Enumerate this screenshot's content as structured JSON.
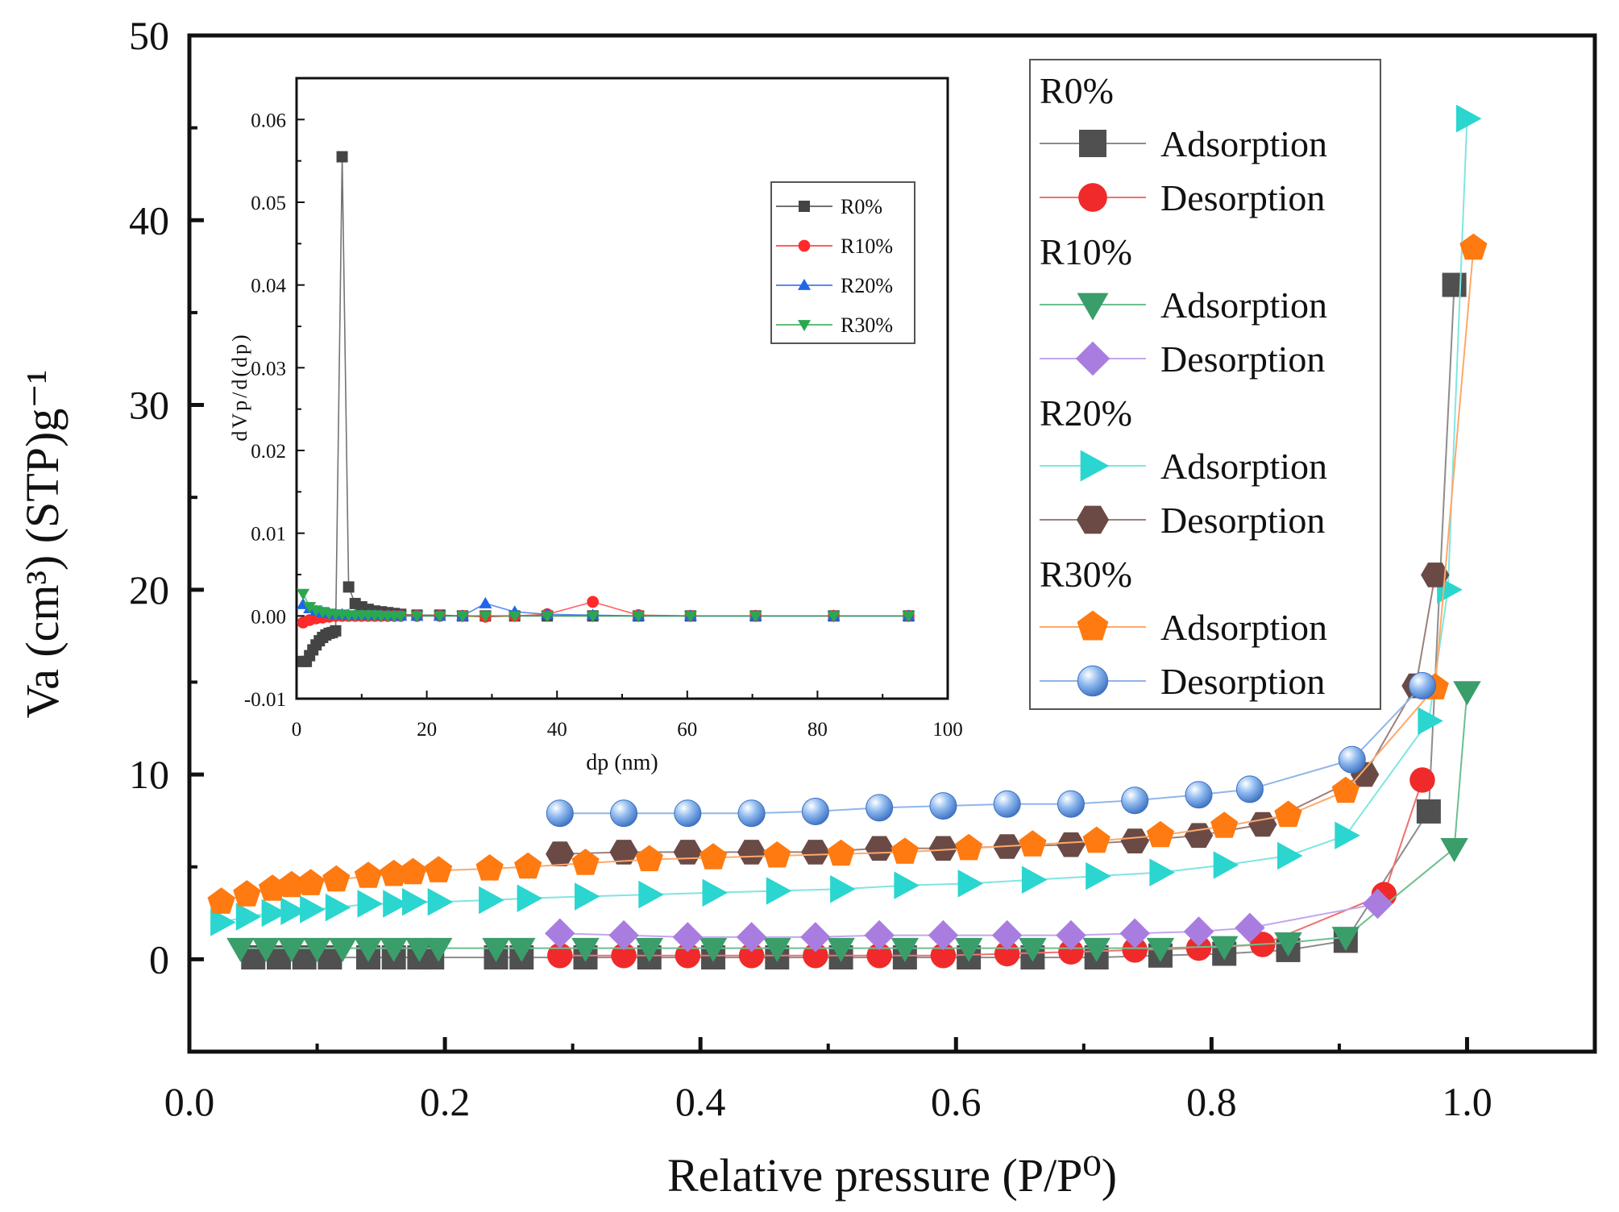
{
  "chart_data": [
    {
      "type": "scatter",
      "xlabel": "Relative pressure (P/P⁰)",
      "ylabel": "Va (cm³) (STP)g⁻¹",
      "xlim": [
        0.0,
        1.1
      ],
      "ylim": [
        -5,
        50
      ],
      "x_ticks": [
        "0.0",
        "0.2",
        "0.4",
        "0.6",
        "0.8",
        "1.0"
      ],
      "y_ticks": [
        "0",
        "10",
        "20",
        "30",
        "40",
        "50"
      ],
      "grid": false,
      "legend_position": "top-right",
      "legend_groups": [
        "R0%",
        "R10%",
        "R20%",
        "R30%"
      ],
      "series": [
        {
          "name": "Adsorption",
          "group": "R0%",
          "color": "#505050",
          "line_color": "#8c8c8c",
          "marker": "square",
          "x": [
            0.05,
            0.07,
            0.09,
            0.11,
            0.14,
            0.16,
            0.18,
            0.19,
            0.24,
            0.26,
            0.31,
            0.36,
            0.41,
            0.46,
            0.51,
            0.56,
            0.61,
            0.66,
            0.71,
            0.76,
            0.81,
            0.86,
            0.905,
            0.97,
            0.99
          ],
          "y": [
            0.1,
            0.1,
            0.1,
            0.1,
            0.1,
            0.1,
            0.1,
            0.1,
            0.1,
            0.1,
            0.1,
            0.1,
            0.1,
            0.1,
            0.1,
            0.1,
            0.1,
            0.1,
            0.1,
            0.2,
            0.3,
            0.5,
            1.0,
            8.0,
            36.5
          ]
        },
        {
          "name": "Desorption",
          "group": "R0%",
          "color": "#f02a2a",
          "line_color": "#f07070",
          "marker": "circle",
          "x": [
            0.29,
            0.34,
            0.39,
            0.44,
            0.49,
            0.54,
            0.59,
            0.64,
            0.69,
            0.74,
            0.79,
            0.84,
            0.935,
            0.965
          ],
          "y": [
            0.2,
            0.2,
            0.2,
            0.2,
            0.2,
            0.2,
            0.2,
            0.3,
            0.4,
            0.5,
            0.6,
            0.8,
            3.5,
            9.7
          ]
        },
        {
          "name": "Adsorption",
          "group": "R10%",
          "color": "#3a9e6a",
          "line_color": "#6cbf8f",
          "marker": "triangle-down",
          "x": [
            0.04,
            0.06,
            0.08,
            0.1,
            0.12,
            0.14,
            0.16,
            0.18,
            0.195,
            0.24,
            0.26,
            0.31,
            0.36,
            0.41,
            0.46,
            0.51,
            0.56,
            0.61,
            0.66,
            0.71,
            0.76,
            0.81,
            0.86,
            0.905,
            0.99,
            1.0
          ],
          "y": [
            0.6,
            0.6,
            0.6,
            0.6,
            0.6,
            0.6,
            0.6,
            0.6,
            0.6,
            0.6,
            0.6,
            0.6,
            0.6,
            0.6,
            0.6,
            0.6,
            0.6,
            0.6,
            0.6,
            0.6,
            0.6,
            0.7,
            0.9,
            1.2,
            6.0,
            14.5
          ]
        },
        {
          "name": "Desorption",
          "group": "R10%",
          "color": "#a97de0",
          "line_color": "#c4a6ec",
          "marker": "diamond",
          "x": [
            0.29,
            0.34,
            0.39,
            0.44,
            0.49,
            0.54,
            0.59,
            0.64,
            0.69,
            0.74,
            0.79,
            0.83,
            0.93
          ],
          "y": [
            1.4,
            1.3,
            1.2,
            1.2,
            1.2,
            1.3,
            1.3,
            1.3,
            1.3,
            1.4,
            1.5,
            1.7,
            3.0
          ]
        },
        {
          "name": "Adsorption",
          "group": "R20%",
          "color": "#2ad6cf",
          "line_color": "#7fe6e0",
          "marker": "triangle-right",
          "x": [
            0.025,
            0.045,
            0.065,
            0.08,
            0.095,
            0.115,
            0.14,
            0.16,
            0.175,
            0.195,
            0.235,
            0.265,
            0.31,
            0.36,
            0.41,
            0.46,
            0.51,
            0.56,
            0.61,
            0.66,
            0.71,
            0.76,
            0.81,
            0.86,
            0.905,
            0.97,
            0.985,
            1.0
          ],
          "y": [
            2.0,
            2.3,
            2.5,
            2.6,
            2.7,
            2.8,
            3.0,
            3.0,
            3.1,
            3.1,
            3.2,
            3.3,
            3.4,
            3.5,
            3.6,
            3.7,
            3.8,
            4.0,
            4.1,
            4.3,
            4.5,
            4.7,
            5.1,
            5.6,
            6.7,
            12.9,
            20.0,
            45.5
          ]
        },
        {
          "name": "Desorption",
          "group": "R20%",
          "color": "#6b4a46",
          "line_color": "#9c807c",
          "marker": "hexagon",
          "x": [
            0.29,
            0.34,
            0.39,
            0.44,
            0.49,
            0.54,
            0.59,
            0.64,
            0.69,
            0.74,
            0.79,
            0.84,
            0.92,
            0.96,
            0.975
          ],
          "y": [
            5.7,
            5.8,
            5.8,
            5.8,
            5.8,
            6.0,
            6.0,
            6.1,
            6.2,
            6.4,
            6.7,
            7.3,
            10.0,
            14.8,
            20.8
          ]
        },
        {
          "name": "Adsorption",
          "group": "R30%",
          "color": "#ff7a10",
          "line_color": "#ffa868",
          "marker": "pentagon",
          "x": [
            0.025,
            0.045,
            0.065,
            0.08,
            0.095,
            0.115,
            0.14,
            0.16,
            0.175,
            0.195,
            0.235,
            0.265,
            0.31,
            0.36,
            0.41,
            0.46,
            0.51,
            0.56,
            0.61,
            0.66,
            0.71,
            0.76,
            0.81,
            0.86,
            0.905,
            0.975,
            1.005
          ],
          "y": [
            3.1,
            3.5,
            3.8,
            4.0,
            4.1,
            4.3,
            4.5,
            4.6,
            4.7,
            4.8,
            4.9,
            5.0,
            5.2,
            5.4,
            5.5,
            5.6,
            5.7,
            5.8,
            6.0,
            6.2,
            6.4,
            6.7,
            7.2,
            7.8,
            9.1,
            14.7,
            38.5
          ]
        },
        {
          "name": "Desorption",
          "group": "R30%",
          "color": "#4f88d6",
          "line_color": "#8fb6ea",
          "marker": "sphere",
          "x": [
            0.29,
            0.34,
            0.39,
            0.44,
            0.49,
            0.54,
            0.59,
            0.64,
            0.69,
            0.74,
            0.79,
            0.83,
            0.91,
            0.965
          ],
          "y": [
            7.9,
            7.9,
            7.9,
            7.9,
            8.0,
            8.2,
            8.3,
            8.4,
            8.4,
            8.6,
            8.9,
            9.2,
            10.8,
            14.8
          ]
        }
      ]
    },
    {
      "type": "line",
      "xlabel": "dp (nm)",
      "ylabel": "dVp/d(dp)",
      "xlim": [
        0,
        100
      ],
      "ylim": [
        -0.01,
        0.065
      ],
      "x_ticks": [
        "0",
        "20",
        "40",
        "60",
        "80",
        "100"
      ],
      "y_ticks": [
        "-0.01",
        "0.00",
        "0.01",
        "0.02",
        "0.03",
        "0.04",
        "0.05",
        "0.06"
      ],
      "grid": false,
      "legend_position": "top-right",
      "series": [
        {
          "name": "R0%",
          "color": "#444444",
          "marker": "square",
          "x": [
            1.0,
            1.5,
            2.0,
            2.5,
            3.0,
            3.5,
            4.0,
            4.5,
            5.0,
            5.5,
            6.0,
            7.0,
            8.0,
            9.0,
            10.0,
            11.0,
            12.0,
            13.0,
            14.0,
            15.0,
            16.0,
            18.5,
            22.0,
            25.5,
            29.0,
            33.5,
            38.5,
            45.5,
            52.5,
            60.5,
            70.5,
            82.5,
            94.0
          ],
          "y": [
            -0.0055,
            -0.0055,
            -0.0048,
            -0.0041,
            -0.0035,
            -0.003,
            -0.0026,
            -0.0023,
            -0.0021,
            -0.002,
            -0.0018,
            0.0555,
            0.0035,
            0.0015,
            0.0011,
            0.0008,
            0.0006,
            0.0005,
            0.0004,
            0.0003,
            0.0002,
            0.0001,
            0.0001,
            0.0,
            0.0,
            0.0,
            0.0,
            0.0,
            0.0,
            0.0,
            0.0,
            0.0,
            0.0
          ]
        },
        {
          "name": "R10%",
          "color": "#ff2a2a",
          "marker": "circle",
          "x": [
            1.0,
            2.0,
            3.0,
            4.0,
            5.0,
            6.0,
            7.0,
            8.0,
            9.0,
            10.0,
            11.0,
            12.0,
            13.0,
            14.0,
            15.0,
            16.0,
            18.5,
            22.0,
            25.5,
            29.0,
            33.5,
            38.5,
            45.5,
            52.5,
            60.5,
            70.5,
            82.5,
            94.0
          ],
          "y": [
            -0.0008,
            -0.0005,
            -0.0003,
            -0.0002,
            -0.0001,
            0.0,
            0.0,
            0.0,
            0.0,
            0.0,
            0.0,
            0.0,
            0.0,
            0.0,
            0.0,
            0.0,
            0.0,
            0.0,
            0.0,
            -0.0001,
            0.0,
            0.0002,
            0.0017,
            0.0001,
            0.0,
            0.0,
            0.0,
            0.0
          ]
        },
        {
          "name": "R20%",
          "color": "#1f66e8",
          "marker": "triangle-up",
          "x": [
            1.0,
            2.0,
            3.0,
            4.0,
            5.0,
            6.0,
            7.0,
            8.0,
            9.0,
            10.0,
            11.0,
            12.0,
            13.0,
            14.0,
            15.0,
            16.0,
            18.5,
            22.0,
            25.5,
            29.0,
            33.5,
            38.5,
            45.5,
            52.5,
            60.5,
            70.5,
            82.5,
            94.0
          ],
          "y": [
            0.0014,
            0.0009,
            0.0006,
            0.0004,
            0.0003,
            0.0002,
            0.0002,
            0.0001,
            0.0001,
            0.0001,
            0.0001,
            0.0001,
            0.0001,
            0.0001,
            0.0,
            0.0,
            0.0,
            0.0,
            0.0,
            0.0015,
            0.0005,
            0.0002,
            0.0001,
            0.0,
            0.0,
            0.0,
            0.0,
            0.0
          ]
        },
        {
          "name": "R30%",
          "color": "#2aa84f",
          "marker": "triangle-down",
          "x": [
            1.0,
            2.0,
            3.0,
            4.0,
            5.0,
            6.0,
            7.0,
            8.0,
            9.0,
            10.0,
            11.0,
            12.0,
            13.0,
            14.0,
            15.0,
            16.0,
            18.5,
            22.0,
            25.5,
            29.0,
            33.5,
            38.5,
            45.5,
            52.5,
            60.5,
            70.5,
            82.5,
            94.0
          ],
          "y": [
            0.0027,
            0.0011,
            0.0007,
            0.0005,
            0.0003,
            0.0002,
            0.0002,
            0.0001,
            0.0001,
            0.0001,
            0.0001,
            0.0001,
            0.0,
            0.0,
            0.0,
            0.0,
            0.0,
            0.0,
            0.0,
            0.0,
            0.0,
            0.0,
            0.0,
            0.0,
            0.0,
            0.0,
            0.0,
            0.0
          ]
        }
      ]
    }
  ]
}
